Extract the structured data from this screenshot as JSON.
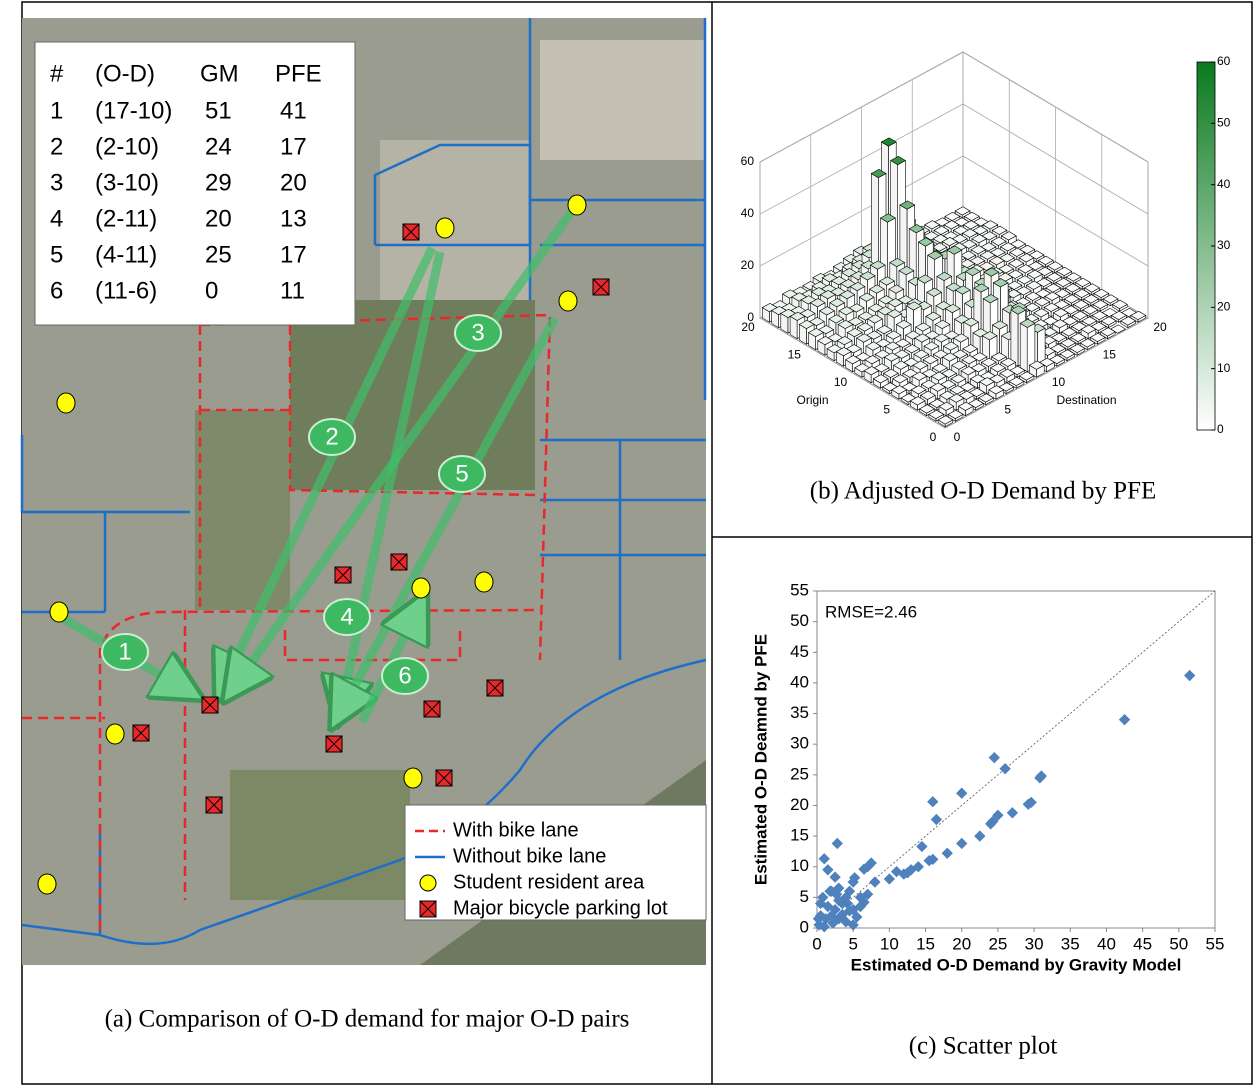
{
  "map_panel": {
    "table": {
      "header": [
        "#",
        "(O-D)",
        "GM",
        "PFE"
      ],
      "rows": [
        [
          1,
          "(17-10)",
          51,
          41
        ],
        [
          2,
          "(2-10)",
          24,
          17
        ],
        [
          3,
          "(3-10)",
          29,
          20
        ],
        [
          4,
          "(2-11)",
          20,
          13
        ],
        [
          5,
          "(4-11)",
          25,
          17
        ],
        [
          6,
          "(11-6)",
          0,
          11
        ]
      ]
    },
    "pairs": [
      "1",
      "2",
      "3",
      "4",
      "5",
      "6"
    ],
    "legend": [
      "With bike lane",
      "Without bike lane",
      "Student resident area",
      "Major bicycle parking lot"
    ],
    "caption": "(a) Comparison of O-D demand for major O-D pairs"
  },
  "chart_data": [
    {
      "type": "bar3d",
      "caption": "(b) Adjusted O-D Demand by PFE",
      "xlabel": "Origin",
      "ylabel": "Destination",
      "xlim": [
        0,
        20
      ],
      "ylim": [
        0,
        20
      ],
      "zlim": [
        0,
        60
      ],
      "xticks": [
        0,
        5,
        10,
        15,
        20
      ],
      "yticks": [
        0,
        5,
        10,
        15,
        20
      ],
      "zticks": [
        0,
        20,
        40,
        60
      ],
      "clim": [
        0,
        60
      ],
      "cticks": [
        0,
        10,
        20,
        30,
        40,
        50,
        60
      ],
      "colormap": [
        "#ffffff",
        "#0a7a1e"
      ],
      "values": [
        [
          1,
          1,
          2,
          1,
          1,
          2,
          1,
          1,
          1,
          3,
          2,
          1,
          1,
          1,
          1,
          1,
          1,
          0,
          1,
          1
        ],
        [
          1,
          2,
          3,
          2,
          1,
          3,
          2,
          2,
          1,
          17,
          13,
          2,
          1,
          1,
          1,
          2,
          1,
          1,
          1,
          0
        ],
        [
          1,
          1,
          2,
          2,
          1,
          2,
          1,
          2,
          2,
          20,
          9,
          2,
          2,
          1,
          1,
          1,
          1,
          1,
          0,
          1
        ],
        [
          2,
          2,
          3,
          2,
          2,
          3,
          2,
          2,
          2,
          8,
          17,
          3,
          2,
          1,
          2,
          1,
          1,
          1,
          1,
          1
        ],
        [
          1,
          2,
          2,
          3,
          2,
          3,
          3,
          2,
          8,
          10,
          14,
          3,
          2,
          2,
          1,
          2,
          1,
          1,
          1,
          1
        ],
        [
          2,
          1,
          3,
          2,
          2,
          4,
          3,
          3,
          7,
          18,
          22,
          11,
          4,
          2,
          2,
          2,
          1,
          1,
          1,
          1
        ],
        [
          1,
          2,
          2,
          3,
          3,
          3,
          4,
          5,
          9,
          20,
          24,
          15,
          5,
          3,
          2,
          2,
          2,
          1,
          1,
          1
        ],
        [
          2,
          2,
          3,
          2,
          3,
          4,
          5,
          4,
          8,
          12,
          18,
          10,
          4,
          3,
          2,
          2,
          1,
          1,
          1,
          1
        ],
        [
          3,
          2,
          4,
          3,
          3,
          5,
          4,
          6,
          10,
          15,
          20,
          12,
          5,
          4,
          3,
          2,
          2,
          1,
          1,
          1
        ],
        [
          2,
          3,
          3,
          4,
          3,
          4,
          5,
          7,
          9,
          14,
          16,
          9,
          4,
          3,
          3,
          2,
          2,
          2,
          1,
          1
        ],
        [
          3,
          2,
          4,
          3,
          4,
          6,
          11,
          9,
          12,
          16,
          24,
          14,
          6,
          4,
          3,
          3,
          2,
          2,
          1,
          1
        ],
        [
          4,
          3,
          5,
          4,
          4,
          8,
          6,
          8,
          15,
          22,
          20,
          12,
          5,
          4,
          3,
          3,
          2,
          2,
          2,
          1
        ],
        [
          3,
          4,
          5,
          5,
          6,
          7,
          8,
          7,
          12,
          25,
          18,
          10,
          5,
          4,
          4,
          3,
          3,
          2,
          2,
          1
        ],
        [
          4,
          3,
          6,
          5,
          5,
          6,
          7,
          9,
          14,
          28,
          20,
          9,
          6,
          5,
          4,
          3,
          3,
          2,
          2,
          1
        ],
        [
          5,
          4,
          6,
          7,
          6,
          8,
          9,
          10,
          15,
          35,
          22,
          10,
          6,
          5,
          4,
          3,
          3,
          2,
          2,
          2
        ],
        [
          6,
          5,
          7,
          8,
          9,
          10,
          12,
          14,
          30,
          50,
          25,
          12,
          7,
          5,
          4,
          4,
          3,
          3,
          2,
          2
        ],
        [
          7,
          6,
          8,
          9,
          8,
          9,
          10,
          12,
          45,
          55,
          28,
          10,
          6,
          5,
          4,
          4,
          3,
          3,
          2,
          2
        ],
        [
          6,
          5,
          7,
          8,
          7,
          8,
          9,
          10,
          12,
          20,
          15,
          8,
          5,
          4,
          3,
          3,
          2,
          2,
          2,
          1
        ],
        [
          5,
          4,
          6,
          5,
          6,
          7,
          6,
          7,
          8,
          10,
          9,
          6,
          4,
          3,
          3,
          2,
          2,
          2,
          1,
          1
        ],
        [
          4,
          3,
          5,
          4,
          4,
          5,
          4,
          5,
          6,
          7,
          6,
          5,
          3,
          3,
          2,
          2,
          2,
          1,
          1,
          1
        ]
      ]
    },
    {
      "type": "scatter",
      "caption": "(c) Scatter plot",
      "annotation": "RMSE=2.46",
      "xlabel": "Estimated O-D Demand by Gravity Model",
      "ylabel": "Estimated O-D Deamnd by PFE",
      "xlim": [
        0,
        55
      ],
      "ylim": [
        0,
        55
      ],
      "xticks": [
        0,
        5,
        10,
        15,
        20,
        25,
        30,
        35,
        40,
        45,
        50,
        55
      ],
      "yticks": [
        0,
        5,
        10,
        15,
        20,
        25,
        30,
        35,
        40,
        45,
        50,
        55
      ],
      "color": "#4f81bd",
      "x": [
        51.5,
        42.5,
        31,
        30.8,
        29.6,
        29.2,
        26,
        25,
        24.5,
        24.3,
        24,
        27,
        22.5,
        20,
        20,
        18,
        16.5,
        16,
        16,
        15.5,
        14.5,
        14,
        13,
        12.5,
        12,
        11,
        10,
        8,
        7.5,
        7,
        6.5,
        6,
        5.2,
        5,
        4.5,
        4,
        3.5,
        3,
        2.8,
        2.5,
        2,
        1.5,
        1,
        0.8,
        0.5,
        0.3,
        1.2,
        2,
        2.5,
        3,
        3.5,
        4,
        4.5,
        5,
        5.5,
        6,
        6.5,
        7,
        1,
        1.5,
        2.2,
        3,
        0.5,
        1.8,
        4.2,
        5,
        0.2,
        2.7
      ],
      "y": [
        41.2,
        34,
        24.8,
        24.5,
        20.5,
        20.2,
        26,
        18.4,
        27.8,
        17.4,
        17,
        18.8,
        15,
        22,
        13.8,
        12.2,
        17.7,
        20.6,
        11.2,
        11,
        13.3,
        10,
        9.5,
        9,
        8.8,
        9.2,
        8,
        7.5,
        10.6,
        10,
        9.6,
        5,
        8.2,
        7.5,
        6,
        5,
        4,
        4.5,
        13.8,
        8.3,
        6,
        9.5,
        11.3,
        5,
        2,
        0.5,
        1.5,
        2,
        3,
        1.5,
        2.2,
        1,
        2.8,
        3,
        1.8,
        3.5,
        4.2,
        5.5,
        0.2,
        3.5,
        0.8,
        6.5,
        4,
        6,
        4,
        0.5,
        1.5,
        5.5
      ]
    }
  ]
}
